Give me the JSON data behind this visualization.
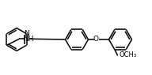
{
  "bg_color": "#ffffff",
  "lw": 1.1,
  "figsize": [
    1.92,
    0.95
  ],
  "dpi": 100,
  "xlim": [
    0,
    192
  ],
  "ylim": [
    0,
    95
  ]
}
